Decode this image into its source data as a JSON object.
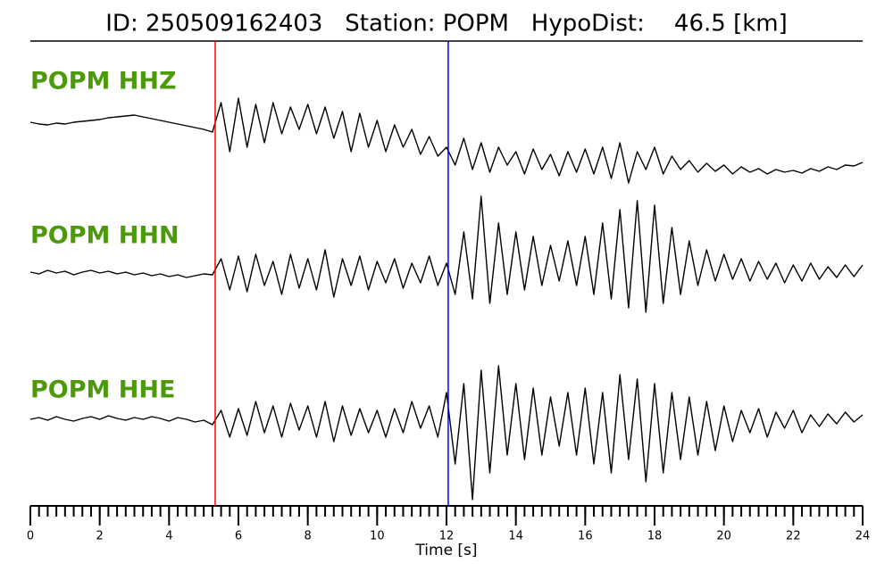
{
  "chart_data": {
    "type": "line",
    "title": "ID: 250509162403   Station: POPM   HypoDist:    46.5 [km]",
    "x_label": "Time [s]",
    "xlim": [
      0,
      24
    ],
    "xticks": [
      0,
      2,
      4,
      6,
      8,
      10,
      12,
      14,
      16,
      18,
      20,
      22,
      24
    ],
    "x_minor_interval": 0.25,
    "label_color": "#4c9a0a",
    "picks": [
      {
        "time": 5.33,
        "color": "#ff0000"
      },
      {
        "time": 12.05,
        "color": "#0000ff"
      }
    ],
    "x": [
      0,
      0.25,
      0.5,
      0.75,
      1,
      1.25,
      1.5,
      1.75,
      2,
      2.25,
      2.5,
      2.75,
      3,
      3.25,
      3.5,
      3.75,
      4,
      4.25,
      4.5,
      4.75,
      5,
      5.25,
      5.5,
      5.75,
      6,
      6.25,
      6.5,
      6.75,
      7,
      7.25,
      7.5,
      7.75,
      8,
      8.25,
      8.5,
      8.75,
      9,
      9.25,
      9.5,
      9.75,
      10,
      10.25,
      10.5,
      10.75,
      11,
      11.25,
      11.5,
      11.75,
      12,
      12.25,
      12.5,
      12.75,
      13,
      13.25,
      13.5,
      13.75,
      14,
      14.25,
      14.5,
      14.75,
      15,
      15.25,
      15.5,
      15.75,
      16,
      16.25,
      16.5,
      16.75,
      17,
      17.25,
      17.5,
      17.75,
      18,
      18.25,
      18.5,
      18.75,
      19,
      19.25,
      19.5,
      19.75,
      20,
      20.25,
      20.5,
      20.75,
      21,
      21.25,
      21.5,
      21.75,
      22,
      22.25,
      22.5,
      22.75,
      23,
      23.25,
      23.5,
      23.75,
      24
    ],
    "series": [
      {
        "name": "POPM HHZ",
        "color": "#000000",
        "values": [
          8,
          6,
          5,
          7,
          6,
          8,
          9,
          10,
          11,
          13,
          14,
          15,
          16,
          14,
          12,
          10,
          8,
          6,
          4,
          2,
          0,
          -3,
          30,
          -25,
          35,
          -20,
          28,
          -15,
          30,
          -5,
          25,
          0,
          28,
          -5,
          25,
          -10,
          20,
          -25,
          18,
          -20,
          10,
          -25,
          5,
          -20,
          0,
          -28,
          -8,
          -30,
          -20,
          -40,
          -10,
          -45,
          -15,
          -48,
          -20,
          -40,
          -25,
          -50,
          -22,
          -45,
          -28,
          -52,
          -25,
          -48,
          -22,
          -50,
          -20,
          -55,
          -15,
          -60,
          -25,
          -45,
          -20,
          -50,
          -30,
          -45,
          -35,
          -48,
          -38,
          -47,
          -40,
          -50,
          -42,
          -48,
          -44,
          -50,
          -45,
          -48,
          -46,
          -49,
          -44,
          -47,
          -42,
          -45,
          -40,
          -41,
          -37
        ]
      },
      {
        "name": "POPM HHN",
        "color": "#000000",
        "values": [
          0,
          -2,
          2,
          -1,
          1,
          -3,
          0,
          2,
          -1,
          1,
          -2,
          0,
          -3,
          -1,
          -4,
          -2,
          -5,
          -3,
          -6,
          -4,
          -2,
          -3,
          15,
          -20,
          18,
          -22,
          20,
          -15,
          12,
          -25,
          20,
          -18,
          15,
          -20,
          25,
          -28,
          15,
          -15,
          18,
          -20,
          12,
          -12,
          15,
          -18,
          10,
          -12,
          18,
          -15,
          10,
          -25,
          45,
          -30,
          85,
          -35,
          55,
          -25,
          45,
          -20,
          40,
          -15,
          30,
          -10,
          35,
          -15,
          40,
          -25,
          55,
          -30,
          70,
          -40,
          80,
          -45,
          75,
          -35,
          50,
          -25,
          35,
          -15,
          25,
          -10,
          20,
          -8,
          15,
          -10,
          12,
          -8,
          10,
          -12,
          8,
          -10,
          10,
          -8,
          6,
          -6,
          8,
          -5,
          8
        ]
      },
      {
        "name": "POPM HHE",
        "color": "#000000",
        "values": [
          0,
          2,
          -1,
          3,
          0,
          -2,
          1,
          3,
          0,
          4,
          1,
          -1,
          2,
          0,
          3,
          1,
          -2,
          2,
          0,
          -3,
          -1,
          -6,
          10,
          -20,
          12,
          -18,
          20,
          -15,
          15,
          -20,
          18,
          -12,
          15,
          -20,
          20,
          -25,
          15,
          -18,
          12,
          -15,
          10,
          -20,
          12,
          -15,
          20,
          -10,
          15,
          -20,
          30,
          -50,
          40,
          -90,
          55,
          -60,
          60,
          -40,
          40,
          -45,
          35,
          -40,
          25,
          -30,
          30,
          -40,
          35,
          -50,
          30,
          -60,
          50,
          -45,
          45,
          -70,
          40,
          -60,
          30,
          -45,
          25,
          -40,
          20,
          -35,
          15,
          -25,
          10,
          -15,
          12,
          -20,
          8,
          -10,
          10,
          -15,
          5,
          -8,
          6,
          -5,
          8,
          -3,
          5
        ]
      }
    ]
  }
}
